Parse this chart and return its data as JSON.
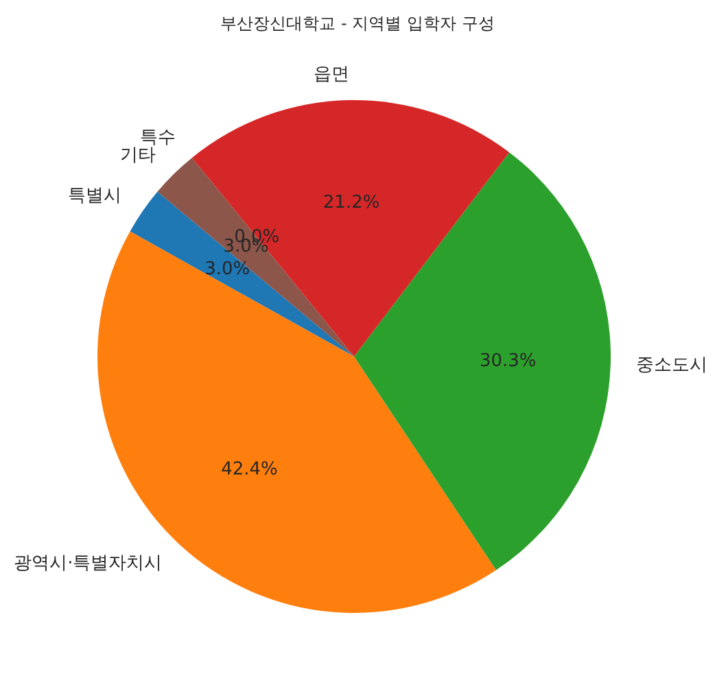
{
  "chart_data": {
    "type": "pie",
    "title": "부산장신대학교 - 지역별 입학자 구성",
    "categories": [
      "특별시",
      "광역시·특별자치시",
      "중소도시",
      "읍면",
      "특수",
      "기타"
    ],
    "values": [
      3.0,
      42.4,
      30.3,
      21.2,
      0.0,
      3.0
    ],
    "colors": [
      "#1f77b4",
      "#ff7f0e",
      "#2ca02c",
      "#d62728",
      "#9467bd",
      "#8c564b"
    ],
    "value_labels": [
      "3.0%",
      "42.4%",
      "30.3%",
      "21.2%",
      "0.0%",
      "3.0%"
    ]
  }
}
